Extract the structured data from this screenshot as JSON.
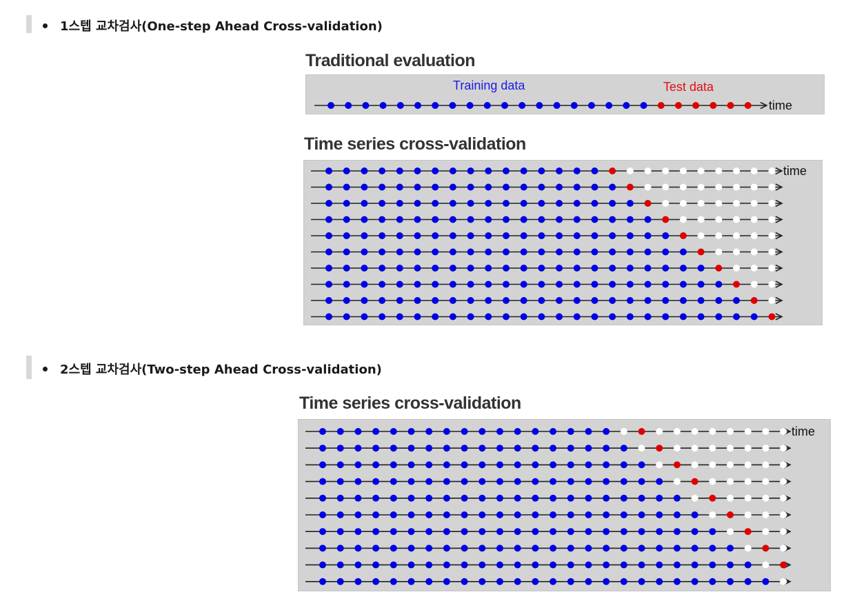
{
  "sections": [
    {
      "bullet_text": "1스텝 교차검사(One-step Ahead Cross-validation)"
    },
    {
      "bullet_text": "2스텝 교차검사(Two-step Ahead Cross-validation)"
    }
  ],
  "traditional": {
    "title": "Traditional evaluation",
    "training_label": "Training data",
    "test_label": "Test data",
    "time_label": "time",
    "n_train": 19,
    "n_test": 6
  },
  "cv1": {
    "title": "Time series cross-validation",
    "time_label": "time",
    "rows": 10,
    "total": 26,
    "first_train": 16,
    "step_ahead": 1
  },
  "cv2": {
    "title": "Time series cross-validation",
    "time_label": "time",
    "rows": 10,
    "total": 27,
    "first_train": 17,
    "step_ahead": 2
  },
  "colors": {
    "train": "#0000e6",
    "test": "#e00000",
    "unused": "#ffffff",
    "panel": "#d3d3d3",
    "line": "#222222",
    "training_label": "#1a1ae6",
    "test_label": "#e01010"
  }
}
